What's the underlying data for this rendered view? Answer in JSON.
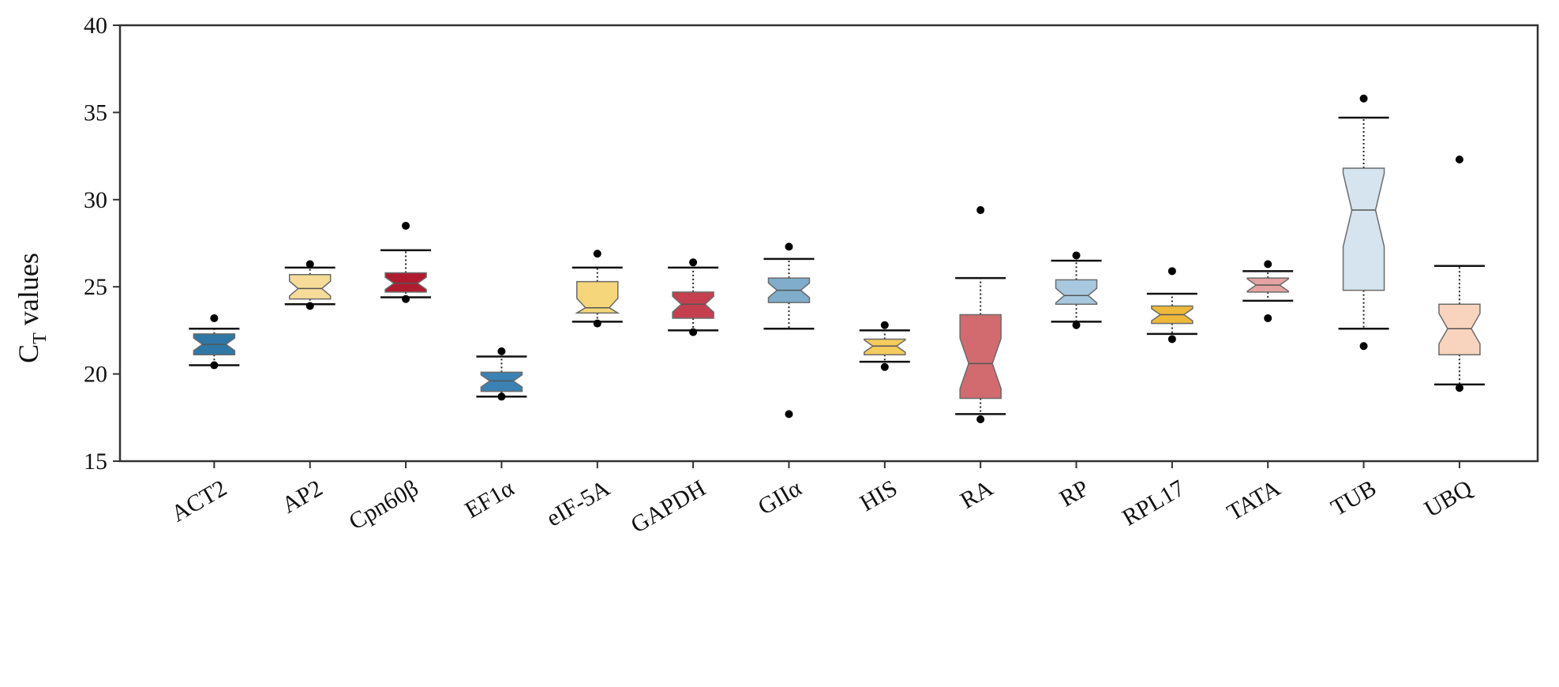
{
  "chart_data": {
    "type": "boxplot",
    "title": "",
    "xlabel": "",
    "ylabel_main": "C",
    "ylabel_sub": "T",
    "ylabel_rest": " values",
    "ylim": [
      15,
      40
    ],
    "yticks": [
      15,
      20,
      25,
      30,
      35,
      40
    ],
    "notched": true,
    "boxes": [
      {
        "label": "ACT2",
        "color": "#2e77a6",
        "whislo": 20.5,
        "q1": 21.1,
        "med": 21.7,
        "q3": 22.3,
        "whishi": 22.6,
        "fliers": [
          20.5,
          23.2
        ]
      },
      {
        "label": "AP2",
        "color": "#f6dc98",
        "whislo": 24.0,
        "q1": 24.3,
        "med": 24.9,
        "q3": 25.7,
        "whishi": 26.1,
        "fliers": [
          23.9,
          26.3
        ]
      },
      {
        "label": "Cpn60β",
        "color": "#b11b2f",
        "whislo": 24.4,
        "q1": 24.7,
        "med": 25.2,
        "q3": 25.8,
        "whishi": 27.1,
        "fliers": [
          24.3,
          28.5
        ]
      },
      {
        "label": "EF1α",
        "color": "#3a82b3",
        "whislo": 18.7,
        "q1": 19.0,
        "med": 19.6,
        "q3": 20.1,
        "whishi": 21.0,
        "fliers": [
          18.7,
          21.3
        ]
      },
      {
        "label": "eIF-5A",
        "color": "#f5d67a",
        "whislo": 23.0,
        "q1": 23.5,
        "med": 23.8,
        "q3": 25.3,
        "whishi": 26.1,
        "fliers": [
          22.9,
          26.9
        ]
      },
      {
        "label": "GAPDH",
        "color": "#c5404f",
        "whislo": 22.5,
        "q1": 23.2,
        "med": 24.0,
        "q3": 24.7,
        "whishi": 26.1,
        "fliers": [
          22.4,
          26.4
        ]
      },
      {
        "label": "GIIα",
        "color": "#7fadcb",
        "whislo": 22.6,
        "q1": 24.1,
        "med": 24.8,
        "q3": 25.5,
        "whishi": 26.6,
        "fliers": [
          17.7,
          27.3
        ]
      },
      {
        "label": "HIS",
        "color": "#f5cc5e",
        "whislo": 20.7,
        "q1": 21.1,
        "med": 21.6,
        "q3": 22.0,
        "whishi": 22.5,
        "fliers": [
          20.4,
          22.8
        ]
      },
      {
        "label": "RA",
        "color": "#d16b6f",
        "whislo": 17.7,
        "q1": 18.6,
        "med": 20.6,
        "q3": 23.4,
        "whishi": 25.5,
        "fliers": [
          17.4,
          29.4
        ]
      },
      {
        "label": "RP",
        "color": "#a7c8df",
        "whislo": 23.0,
        "q1": 24.0,
        "med": 24.5,
        "q3": 25.4,
        "whishi": 26.5,
        "fliers": [
          22.8,
          26.8
        ]
      },
      {
        "label": "RPL17",
        "color": "#eeb93a",
        "whislo": 22.3,
        "q1": 22.9,
        "med": 23.4,
        "q3": 23.9,
        "whishi": 24.6,
        "fliers": [
          22.0,
          25.9
        ]
      },
      {
        "label": "TATA",
        "color": "#e4a3a1",
        "whislo": 24.2,
        "q1": 24.7,
        "med": 25.1,
        "q3": 25.5,
        "whishi": 25.9,
        "fliers": [
          23.2,
          26.3
        ]
      },
      {
        "label": "TUB",
        "color": "#d5e4ee",
        "whislo": 22.6,
        "q1": 24.8,
        "med": 29.4,
        "q3": 31.8,
        "whishi": 34.7,
        "fliers": [
          21.6,
          35.8
        ]
      },
      {
        "label": "UBQ",
        "color": "#f8d3bd",
        "whislo": 19.4,
        "q1": 21.1,
        "med": 22.6,
        "q3": 24.0,
        "whishi": 26.2,
        "fliers": [
          19.2,
          32.3
        ]
      }
    ]
  }
}
